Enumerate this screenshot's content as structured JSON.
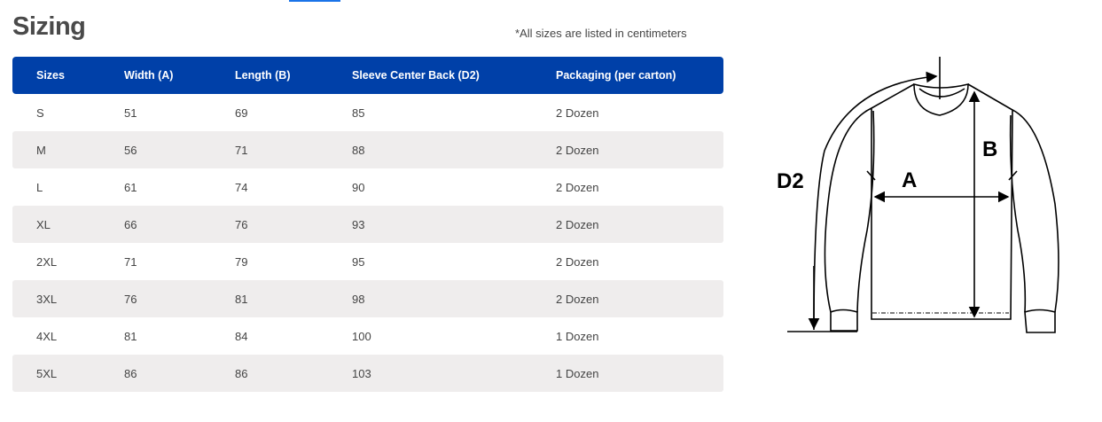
{
  "title": "Sizing",
  "note": "*All sizes are listed in centimeters",
  "table": {
    "headers": [
      "Sizes",
      "Width (A)",
      "Length (B)",
      "Sleeve Center Back (D2)",
      "Packaging (per carton)"
    ],
    "rows": [
      [
        "S",
        "51",
        "69",
        "85",
        "2 Dozen"
      ],
      [
        "M",
        "56",
        "71",
        "88",
        "2 Dozen"
      ],
      [
        "L",
        "61",
        "74",
        "90",
        "2 Dozen"
      ],
      [
        "XL",
        "66",
        "76",
        "93",
        "2 Dozen"
      ],
      [
        "2XL",
        "71",
        "79",
        "95",
        "2 Dozen"
      ],
      [
        "3XL",
        "76",
        "81",
        "98",
        "2 Dozen"
      ],
      [
        "4XL",
        "81",
        "84",
        "100",
        "1 Dozen"
      ],
      [
        "5XL",
        "86",
        "86",
        "103",
        "1 Dozen"
      ]
    ]
  },
  "diagram": {
    "label_d2": "D2",
    "label_a": "A",
    "label_b": "B"
  },
  "colors": {
    "header": "#0040a8",
    "stripe": "#efeded"
  }
}
